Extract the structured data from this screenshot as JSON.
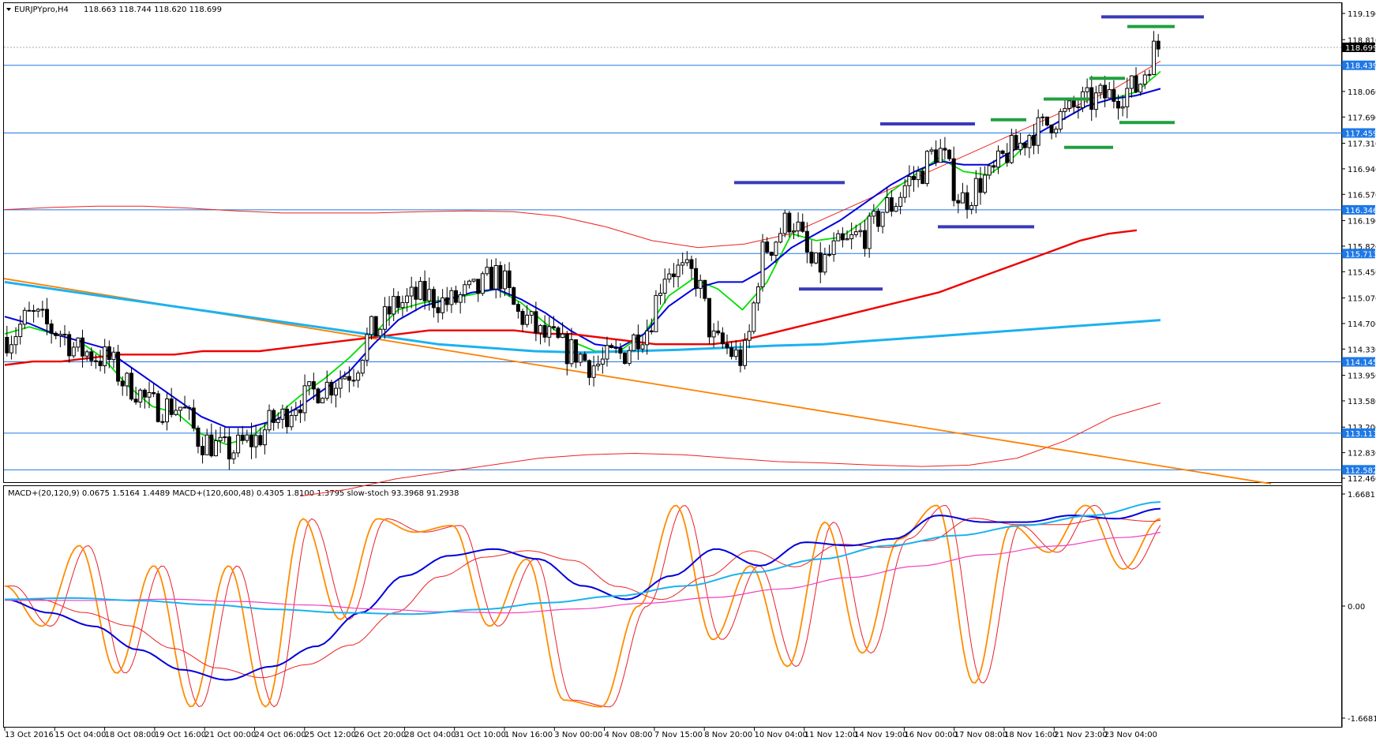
{
  "header": {
    "symbol": "EURJPYpro,H4",
    "ohlc": "118.663 118.744 118.620 118.699"
  },
  "indicator_header": {
    "text": "MACD+(20,120,9) 0.0675 1.5164 1.4489  MACD+(120,600,48) 0.4305 1.8100 1.3795  slow-stoch 93.3968 91.2938"
  },
  "colors": {
    "candle_up": "#000000",
    "candle_down": "#000000",
    "ema_fast": "#00e000",
    "ema_mid": "#0000dd",
    "ema_slow": "#ee0000",
    "ema_long": "#1ab2f0",
    "envelope": "#ee2222",
    "trendline": "#ff8000",
    "hline": "#1e78e6",
    "resistance_marks": "#3a3ab8",
    "support_marks": "#20a040",
    "stoch": "#ff8c00",
    "stoch_signal": "#e8202a",
    "macd_fast": "#0000dd",
    "macd_fast_signal": "#ee2222",
    "macd_slow": "#1ab2f0",
    "macd_slow_signal": "#f040c0"
  },
  "chart_data": [
    {
      "type": "candlestick",
      "title": "EURJPYpro,H4",
      "ylim": [
        112.46,
        119.19
      ],
      "y_ticks": [
        "119.190",
        "118.810",
        "118.440",
        "118.060",
        "117.690",
        "117.310",
        "116.940",
        "116.570",
        "116.190",
        "115.820",
        "115.450",
        "115.070",
        "114.700",
        "114.330",
        "113.950",
        "113.580",
        "113.200",
        "112.830",
        "112.460"
      ],
      "x_labels": [
        "13 Oct 2016",
        "15 Oct 04:00",
        "18 Oct 08:00",
        "19 Oct 16:00",
        "21 Oct 00:00",
        "24 Oct 06:00",
        "25 Oct 12:00",
        "26 Oct 20:00",
        "28 Oct 04:00",
        "31 Oct 10:00",
        "1 Nov 16:00",
        "3 Nov 00:00",
        "4 Nov 08:00",
        "7 Nov 15:00",
        "8 Nov 20:00",
        "10 Nov 04:00",
        "11 Nov 12:00",
        "14 Nov 19:00",
        "16 Nov 00:00",
        "17 Nov 08:00",
        "18 Nov 16:00",
        "21 Nov 23:00",
        "23 Nov 04:00"
      ],
      "current_price": "118.699",
      "horizontal_levels": [
        "118.439",
        "117.459",
        "116.346",
        "115.713",
        "114.145",
        "113.113",
        "112.582"
      ],
      "close_path": [
        114.5,
        114.8,
        114.6,
        114.3,
        114.2,
        113.8,
        113.5,
        113.5,
        113.0,
        112.85,
        113.0,
        113.3,
        113.6,
        113.8,
        114.0,
        114.6,
        115.0,
        115.1,
        115.0,
        115.15,
        115.4,
        114.8,
        114.5,
        114.3,
        114.1,
        114.25,
        114.6,
        115.5,
        115.4,
        114.4,
        114.2,
        115.8,
        116.2,
        115.5,
        115.8,
        116.0,
        116.4,
        116.8,
        117.2,
        116.5,
        116.8,
        117.2,
        117.5,
        117.7,
        117.9,
        118.0,
        118.1,
        118.7
      ],
      "series": [
        {
          "name": "EMA fast",
          "values": [
            114.55,
            114.65,
            114.55,
            114.45,
            114.2,
            113.8,
            113.5,
            113.4,
            113.1,
            112.95,
            113.05,
            113.35,
            113.65,
            113.9,
            114.2,
            114.55,
            114.9,
            115.0,
            115.05,
            115.12,
            115.2,
            115.0,
            114.7,
            114.45,
            114.3,
            114.3,
            114.55,
            115.1,
            115.35,
            115.2,
            114.9,
            115.3,
            116.0,
            115.9,
            115.95,
            116.2,
            116.6,
            116.85,
            117.1,
            116.9,
            116.85,
            117.1,
            117.45,
            117.65,
            117.85,
            117.95,
            118.05,
            118.35
          ]
        },
        {
          "name": "EMA mid",
          "values": [
            114.8,
            114.7,
            114.55,
            114.45,
            114.35,
            114.1,
            113.85,
            113.6,
            113.35,
            113.2,
            113.2,
            113.3,
            113.5,
            113.75,
            114.0,
            114.4,
            114.75,
            114.95,
            115.05,
            115.15,
            115.2,
            115.05,
            114.85,
            114.6,
            114.4,
            114.35,
            114.55,
            114.95,
            115.2,
            115.3,
            115.3,
            115.5,
            115.8,
            116.0,
            116.2,
            116.45,
            116.7,
            116.9,
            117.05,
            117.0,
            117.0,
            117.2,
            117.45,
            117.65,
            117.85,
            117.95,
            118.0,
            118.1
          ]
        },
        {
          "name": "EMA slow",
          "values": [
            114.1,
            114.15,
            114.15,
            114.2,
            114.25,
            114.25,
            114.25,
            114.3,
            114.3,
            114.3,
            114.35,
            114.4,
            114.45,
            114.5,
            114.55,
            114.6,
            114.6,
            114.6,
            114.6,
            114.55,
            114.55,
            114.5,
            114.45,
            114.4,
            114.4,
            114.4,
            114.45,
            114.55,
            114.65,
            114.75,
            114.85,
            114.95,
            115.05,
            115.15,
            115.3,
            115.45,
            115.6,
            115.75,
            115.9,
            116.0,
            116.05
          ]
        },
        {
          "name": "EMA long",
          "values": [
            115.3,
            115.2,
            115.1,
            115.0,
            114.9,
            114.8,
            114.7,
            114.6,
            114.5,
            114.4,
            114.35,
            114.3,
            114.28,
            114.3,
            114.32,
            114.35,
            114.38,
            114.4,
            114.45,
            114.5,
            114.55,
            114.6,
            114.65,
            114.7,
            114.75
          ]
        }
      ],
      "trendline": [
        115.35,
        112.38
      ],
      "resistance_marks": [
        116.74,
        117.59,
        119.14
      ],
      "support_marks": [
        115.2,
        116.1
      ]
    },
    {
      "type": "line",
      "title": "MACD+ / slow-stoch",
      "ylim": [
        -1.6681,
        1.6681
      ],
      "y_ticks": [
        "1.6681",
        "0.00",
        "-1.6681"
      ],
      "series": [
        {
          "name": "slow-stoch",
          "values": [
            0.3,
            -0.3,
            0.9,
            -1.0,
            0.6,
            -1.5,
            0.6,
            -1.5,
            1.3,
            -0.2,
            1.3,
            1.1,
            1.2,
            -0.3,
            0.7,
            -1.4,
            -1.5,
            0.0,
            1.5,
            -0.5,
            0.6,
            -0.9,
            1.25,
            -0.7,
            1.0,
            1.5,
            -1.15,
            1.2,
            0.8,
            1.5,
            0.55,
            1.3
          ]
        },
        {
          "name": "MACD+(20,120,9)",
          "values": [
            0.1,
            -0.1,
            -0.3,
            -0.65,
            -0.95,
            -1.1,
            -0.9,
            -0.6,
            -0.1,
            0.45,
            0.75,
            0.85,
            0.7,
            0.3,
            0.1,
            0.45,
            0.85,
            0.6,
            0.95,
            0.9,
            1.0,
            1.35,
            1.25,
            1.25,
            1.35,
            1.3,
            1.45
          ]
        },
        {
          "name": "MACD+(120,600,48)",
          "values": [
            0.1,
            0.12,
            0.08,
            0.02,
            -0.05,
            -0.1,
            -0.12,
            -0.05,
            0.05,
            0.15,
            0.3,
            0.5,
            0.7,
            0.9,
            1.05,
            1.2,
            1.35,
            1.55
          ]
        }
      ]
    }
  ]
}
